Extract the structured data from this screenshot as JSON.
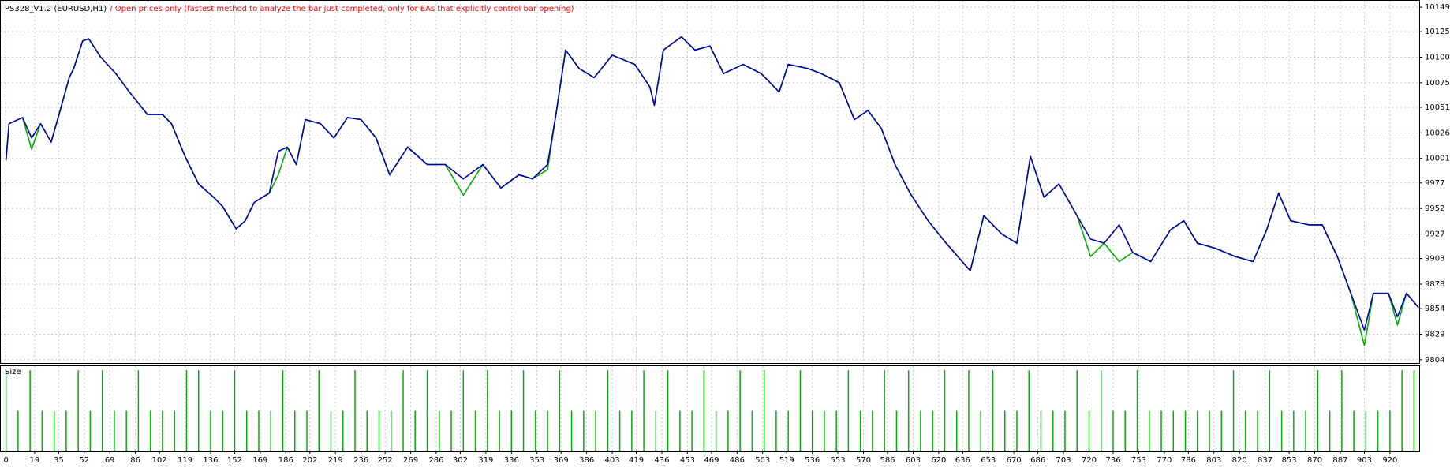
{
  "chart_data": [
    {
      "type": "line",
      "title": "PS328_V1.2 (EURUSD,H1)",
      "subtitle": "/ Open prices only (fastest method to analyze the bar just completed, only for EAs that explicitly control bar opening)",
      "xlim": [
        -4,
        940
      ],
      "ylim": [
        9800,
        10156
      ],
      "yticks": [
        10149,
        10125,
        10100,
        10075,
        10051,
        10026,
        10001,
        9977,
        9952,
        9927,
        9903,
        9878,
        9854,
        9829,
        9804
      ],
      "grid": true,
      "x": [
        0,
        2,
        11,
        17,
        23,
        30,
        36,
        42,
        45,
        51,
        55,
        63,
        73,
        82,
        94,
        104,
        110,
        119,
        128,
        138,
        144,
        153,
        159,
        165,
        175,
        181,
        187,
        193,
        199,
        209,
        218,
        227,
        236,
        246,
        255,
        267,
        280,
        292,
        304,
        317,
        329,
        341,
        350,
        360,
        366,
        372,
        381,
        391,
        403,
        418,
        428,
        431,
        437,
        449,
        458,
        468,
        477,
        490,
        502,
        514,
        520,
        533,
        542,
        554,
        564,
        573,
        582,
        591,
        601,
        613,
        625,
        641,
        650,
        662,
        672,
        681,
        690,
        700,
        712,
        721,
        730,
        740,
        749,
        761,
        774,
        783,
        792,
        804,
        817,
        829,
        838,
        846,
        854,
        866,
        875,
        885,
        894,
        903,
        909,
        919,
        925,
        931,
        939
      ],
      "series": [
        {
          "color": "#00b000",
          "values": [
            9999,
            10035,
            10041,
            10010,
            10035,
            10017,
            10048,
            10080,
            10089,
            10116,
            10118,
            10100,
            10084,
            10066,
            10044,
            10044,
            10035,
            10003,
            9976,
            9963,
            9954,
            9932,
            9940,
            9958,
            9967,
            9985,
            10012,
            9995,
            10039,
            10035,
            10021,
            10041,
            10039,
            10021,
            9985,
            10012,
            9995,
            9995,
            9965,
            9995,
            9972,
            9985,
            9981,
            9990,
            10048,
            10107,
            10089,
            10080,
            10102,
            10093,
            10071,
            10053,
            10107,
            10120,
            10107,
            10111,
            10084,
            10093,
            10084,
            10066,
            10093,
            10089,
            10084,
            10075,
            10039,
            10048,
            10030,
            9995,
            9967,
            9940,
            9918,
            9891,
            9945,
            9927,
            9918,
            10003,
            9963,
            9976,
            9945,
            9905,
            9918,
            9900,
            9909,
            9900,
            9931,
            9940,
            9918,
            9913,
            9905,
            9900,
            9931,
            9967,
            9940,
            9936,
            9936,
            9905,
            9869,
            9818,
            9869,
            9869,
            9838,
            9869,
            9855
          ]
        },
        {
          "color": "#0000b0",
          "values": [
            9999,
            10035,
            10041,
            10021,
            10035,
            10017,
            10048,
            10080,
            10089,
            10116,
            10118,
            10100,
            10084,
            10066,
            10044,
            10044,
            10035,
            10003,
            9976,
            9963,
            9954,
            9932,
            9940,
            9958,
            9967,
            10008,
            10012,
            9995,
            10039,
            10035,
            10021,
            10041,
            10039,
            10021,
            9985,
            10012,
            9995,
            9995,
            9981,
            9995,
            9972,
            9985,
            9981,
            9995,
            10048,
            10107,
            10089,
            10080,
            10102,
            10093,
            10071,
            10053,
            10107,
            10120,
            10107,
            10111,
            10084,
            10093,
            10084,
            10066,
            10093,
            10089,
            10084,
            10075,
            10039,
            10048,
            10030,
            9995,
            9967,
            9940,
            9918,
            9891,
            9945,
            9927,
            9918,
            10003,
            9963,
            9976,
            9945,
            9922,
            9918,
            9936,
            9909,
            9900,
            9931,
            9940,
            9918,
            9913,
            9905,
            9900,
            9931,
            9967,
            9940,
            9936,
            9936,
            9905,
            9869,
            9833,
            9869,
            9869,
            9846,
            9869,
            9855
          ]
        }
      ]
    },
    {
      "type": "bar",
      "title": "Size",
      "color": "#00b000",
      "xlim": [
        -4,
        940
      ],
      "ylim": [
        0,
        2.1
      ],
      "xticks": [
        0,
        19,
        35,
        52,
        69,
        86,
        102,
        119,
        136,
        152,
        169,
        186,
        202,
        219,
        236,
        252,
        269,
        286,
        302,
        319,
        336,
        353,
        369,
        386,
        403,
        419,
        436,
        453,
        469,
        486,
        503,
        519,
        536,
        553,
        570,
        586,
        603,
        620,
        636,
        653,
        670,
        686,
        703,
        720,
        736,
        753,
        770,
        786,
        803,
        820,
        837,
        853,
        870,
        887,
        903,
        920
      ],
      "x": [
        0,
        8,
        16,
        24,
        32,
        40,
        48,
        56,
        64,
        72,
        80,
        88,
        96,
        104,
        112,
        120,
        128,
        136,
        144,
        152,
        160,
        168,
        176,
        184,
        192,
        200,
        208,
        216,
        224,
        232,
        240,
        248,
        256,
        264,
        272,
        280,
        288,
        296,
        304,
        312,
        320,
        328,
        336,
        344,
        352,
        360,
        368,
        376,
        384,
        392,
        400,
        408,
        416,
        424,
        432,
        440,
        448,
        456,
        464,
        472,
        480,
        488,
        496,
        504,
        512,
        520,
        528,
        536,
        544,
        552,
        560,
        568,
        576,
        584,
        592,
        600,
        608,
        616,
        624,
        632,
        640,
        648,
        656,
        664,
        672,
        680,
        688,
        696,
        704,
        712,
        720,
        728,
        736,
        744,
        752,
        760,
        768,
        776,
        784,
        792,
        800,
        808,
        816,
        824,
        832,
        840,
        848,
        856,
        864,
        872,
        880,
        888,
        896,
        904,
        912,
        920,
        928,
        936
      ],
      "values": [
        2,
        1,
        2,
        1,
        1,
        1,
        2,
        1,
        2,
        1,
        1,
        2,
        1,
        1,
        1,
        2,
        2,
        1,
        1,
        2,
        1,
        1,
        1,
        2,
        1,
        1,
        2,
        1,
        1,
        2,
        1,
        1,
        1,
        2,
        1,
        2,
        1,
        1,
        2,
        1,
        2,
        1,
        1,
        2,
        1,
        1,
        2,
        1,
        1,
        1,
        2,
        1,
        1,
        2,
        1,
        2,
        1,
        1,
        2,
        1,
        1,
        2,
        1,
        2,
        1,
        1,
        2,
        1,
        1,
        1,
        2,
        1,
        1,
        2,
        1,
        2,
        1,
        1,
        2,
        1,
        2,
        1,
        2,
        1,
        1,
        2,
        1,
        1,
        1,
        2,
        1,
        2,
        1,
        1,
        2,
        1,
        1,
        1,
        1,
        1,
        1,
        1,
        2,
        1,
        1,
        2,
        1,
        1,
        1,
        2,
        1,
        2,
        1,
        1,
        1,
        1,
        2,
        2
      ]
    }
  ]
}
